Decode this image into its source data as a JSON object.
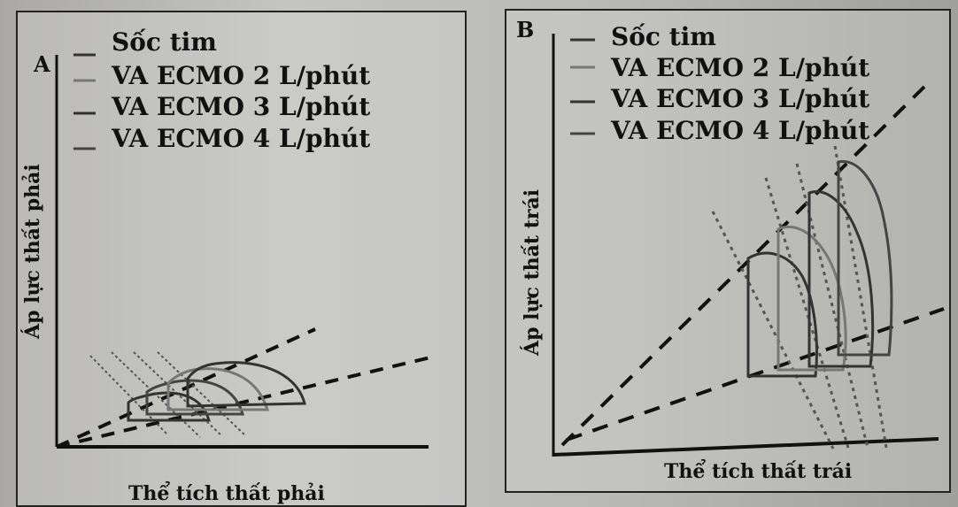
{
  "left_panel": {
    "letter": "A",
    "legend": [
      "Sốc tim",
      "VA ECMO 2 L/phút",
      "VA ECMO 3 L/phút",
      "VA ECMO 4 L/phút"
    ],
    "y_axis_label": "Áp lực thất phải",
    "x_axis_label": "Thể tích thất phải"
  },
  "right_panel": {
    "letter": "B",
    "legend": [
      "Sốc tim",
      "VA ECMO 2 L/phút",
      "VA ECMO 3 L/phút",
      "VA ECMO 4 L/phút"
    ],
    "y_axis_label": "Áp lực thất trái",
    "x_axis_label": "Thể tích thất trái"
  }
}
